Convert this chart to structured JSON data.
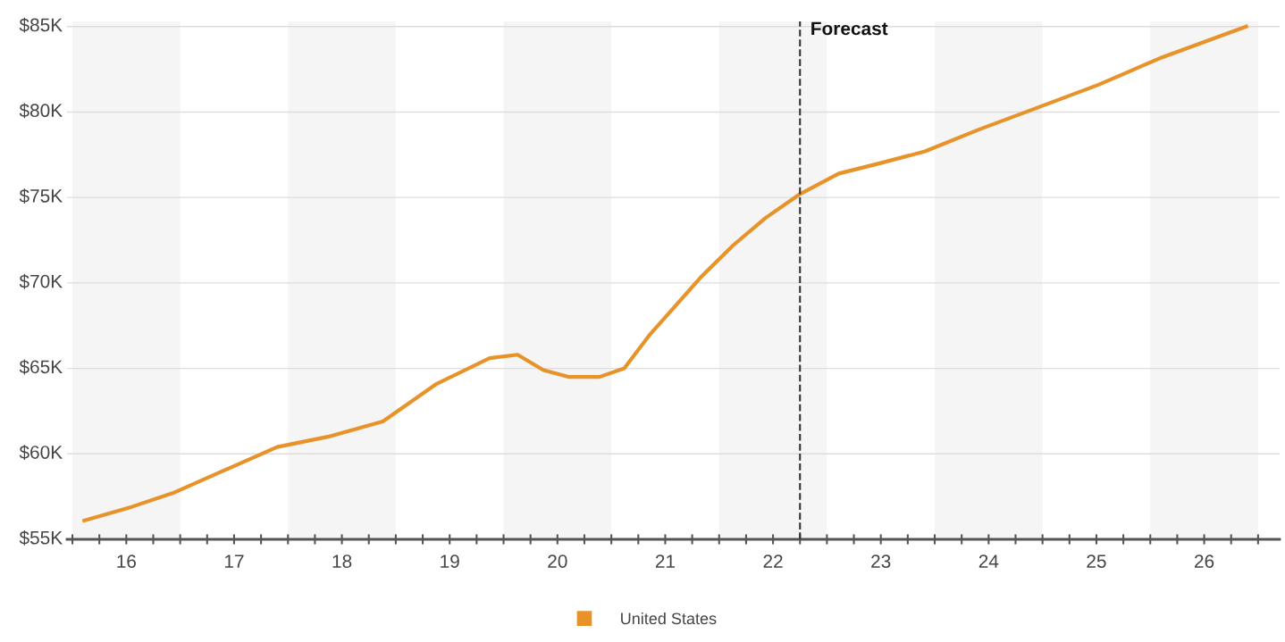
{
  "chart_data": {
    "type": "line",
    "x": [
      15.61,
      16.05,
      16.43,
      17.4,
      17.87,
      18.38,
      18.88,
      19.37,
      19.63,
      19.87,
      20.11,
      20.39,
      20.62,
      20.86,
      21.34,
      21.63,
      21.93,
      22.25,
      22.61,
      22.99,
      23.41,
      23.92,
      24.43,
      25.02,
      25.61,
      26.39
    ],
    "series": [
      {
        "name": "United States",
        "color": "#e8922a",
        "values": [
          56.1,
          56.9,
          57.7,
          60.4,
          61.0,
          61.9,
          64.1,
          65.6,
          65.8,
          64.9,
          64.5,
          64.5,
          65.0,
          67.0,
          70.4,
          72.2,
          73.8,
          75.2,
          76.4,
          77.0,
          77.7,
          79.0,
          80.2,
          81.6,
          83.2,
          85.0
        ]
      }
    ],
    "xlim": [
      15.45,
      26.7
    ],
    "xticks": [
      {
        "value": 15.5,
        "label": null
      },
      {
        "value": 15.75,
        "label": null
      },
      16,
      {
        "value": 16.25,
        "label": null
      },
      {
        "value": 16.5,
        "label": null
      },
      {
        "value": 16.75,
        "label": null
      },
      17,
      {
        "value": 17.25,
        "label": null
      },
      {
        "value": 17.5,
        "label": null
      },
      {
        "value": 17.75,
        "label": null
      },
      18,
      {
        "value": 18.25,
        "label": null
      },
      {
        "value": 18.5,
        "label": null
      },
      {
        "value": 18.75,
        "label": null
      },
      19,
      {
        "value": 19.25,
        "label": null
      },
      {
        "value": 19.5,
        "label": null
      },
      {
        "value": 19.75,
        "label": null
      },
      20,
      {
        "value": 20.25,
        "label": null
      },
      {
        "value": 20.5,
        "label": null
      },
      {
        "value": 20.75,
        "label": null
      },
      21,
      {
        "value": 21.25,
        "label": null
      },
      {
        "value": 21.5,
        "label": null
      },
      {
        "value": 21.75,
        "label": null
      },
      22,
      {
        "value": 22.25,
        "label": null
      },
      {
        "value": 22.5,
        "label": null
      },
      {
        "value": 22.75,
        "label": null
      },
      23,
      {
        "value": 23.25,
        "label": null
      },
      {
        "value": 23.5,
        "label": null
      },
      {
        "value": 23.75,
        "label": null
      },
      24,
      {
        "value": 24.25,
        "label": null
      },
      {
        "value": 24.5,
        "label": null
      },
      {
        "value": 24.75,
        "label": null
      },
      25,
      {
        "value": 25.25,
        "label": null
      },
      {
        "value": 25.5,
        "label": null
      },
      {
        "value": 25.75,
        "label": null
      },
      26,
      {
        "value": 26.25,
        "label": null
      },
      {
        "value": 26.5,
        "label": null
      }
    ],
    "ylim": [
      55,
      85.3
    ],
    "yticks": [
      {
        "value": 55,
        "label": "$55K"
      },
      {
        "value": 60,
        "label": "$60K"
      },
      {
        "value": 65,
        "label": "$65K"
      },
      {
        "value": 70,
        "label": "$70K"
      },
      {
        "value": 75,
        "label": "$75K"
      },
      {
        "value": 80,
        "label": "$80K"
      },
      {
        "value": 85,
        "label": "$85K"
      }
    ],
    "grid": "y",
    "legend": "bottom",
    "marker": "none",
    "line_style": "solid",
    "ref_lines": [
      {
        "axis": "x",
        "value": 22.25,
        "label": "Forecast",
        "color": "#333333",
        "line_style": "dashed"
      }
    ],
    "bands": [
      {
        "axis": "x",
        "from": 15.5,
        "to": 16.5,
        "color": "#f5f5f5"
      },
      {
        "axis": "x",
        "from": 17.5,
        "to": 18.5,
        "color": "#f5f5f5"
      },
      {
        "axis": "x",
        "from": 19.5,
        "to": 20.5,
        "color": "#f5f5f5"
      },
      {
        "axis": "x",
        "from": 21.5,
        "to": 22.5,
        "color": "#f5f5f5"
      },
      {
        "axis": "x",
        "from": 23.5,
        "to": 24.5,
        "color": "#f5f5f5"
      },
      {
        "axis": "x",
        "from": 25.5,
        "to": 26.5,
        "color": "#f5f5f5"
      }
    ]
  }
}
